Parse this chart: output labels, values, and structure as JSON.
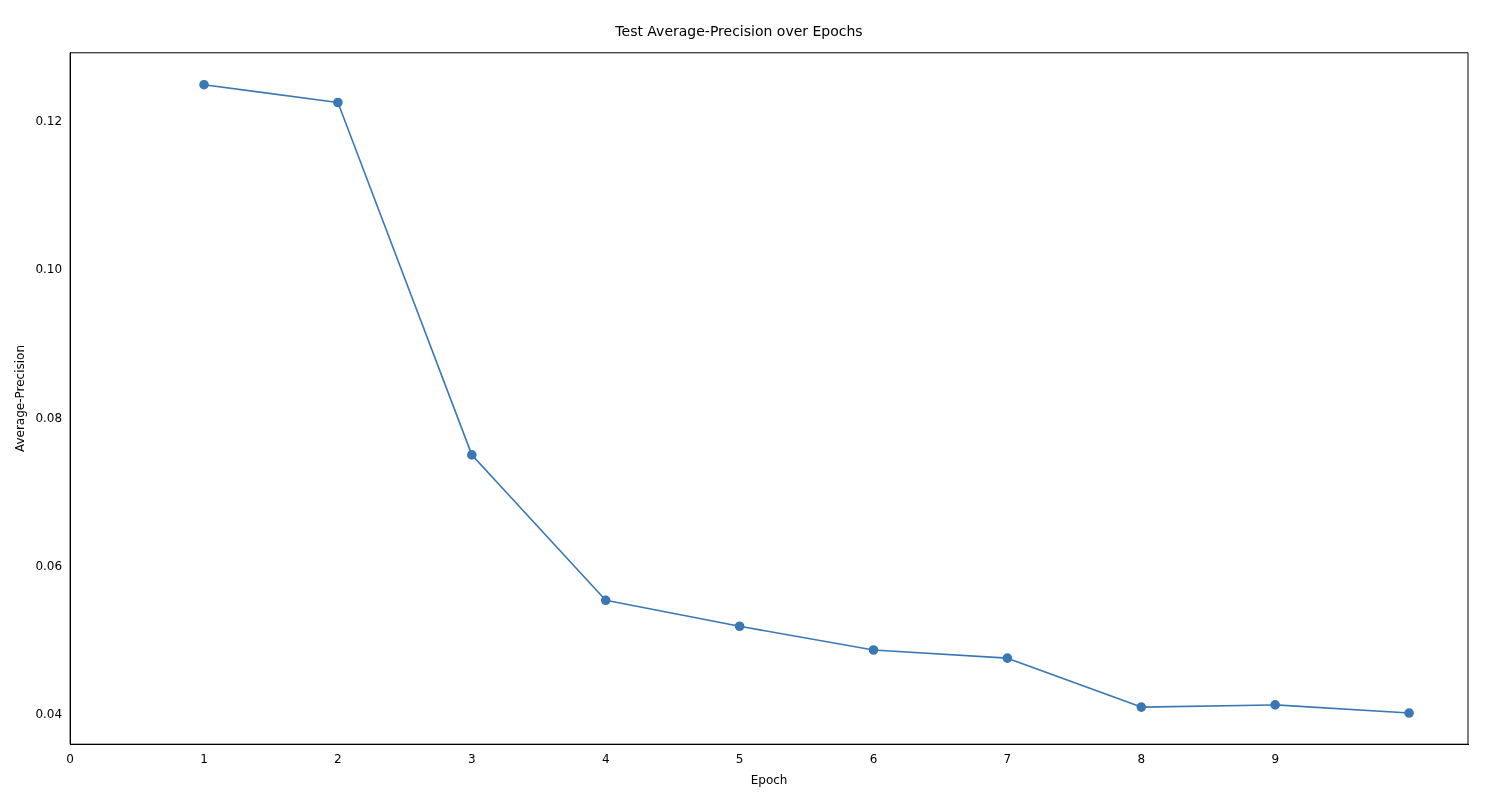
{
  "chart_data": {
    "type": "line",
    "title": "Test Average-Precision over Epochs",
    "xlabel": "Epoch",
    "ylabel": "Average-Precision",
    "x": [
      1,
      2,
      3,
      4,
      5,
      6,
      7,
      8,
      9,
      10
    ],
    "series": [
      {
        "color": "#3a78b5",
        "values": [
          0.125,
          0.1226,
          0.0751,
          0.0555,
          0.052,
          0.0488,
          0.0477,
          0.0411,
          0.0414,
          0.0403
        ]
      }
    ],
    "xlim": [
      0,
      10.44
    ],
    "xticks": [
      0,
      1,
      2,
      3,
      4,
      5,
      6,
      7,
      8,
      9
    ],
    "ylim": [
      0.0361,
      0.1293
    ],
    "yticks": [
      {
        "value": 0.04,
        "label": "0.04"
      },
      {
        "value": 0.06,
        "label": "0.06"
      },
      {
        "value": 0.08,
        "label": "0.08"
      },
      {
        "value": 0.1,
        "label": "0.10"
      },
      {
        "value": 0.12,
        "label": "0.12"
      }
    ],
    "grid": false,
    "legend": false,
    "marker": "circle",
    "line_style": "solid"
  }
}
